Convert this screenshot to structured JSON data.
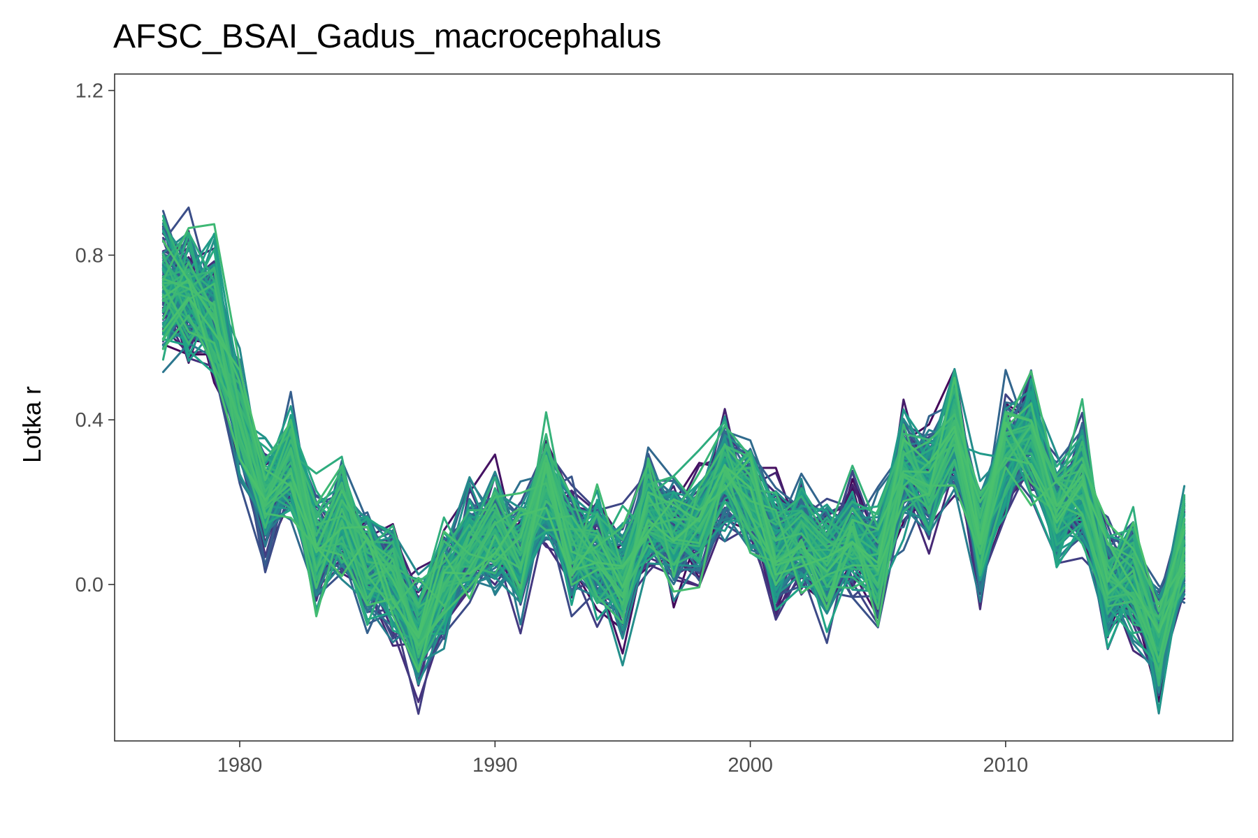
{
  "chart_data": {
    "type": "line",
    "title": "AFSC_BSAI_Gadus_macrocephalus",
    "xlabel": "",
    "ylabel": "Lotka r",
    "xlim": [
      1975.1,
      2018.9
    ],
    "ylim": [
      -0.38,
      1.24
    ],
    "x_ticks": [
      1980,
      1990,
      2000,
      2010
    ],
    "x_tick_labels": [
      "1980",
      "1990",
      "2000",
      "2010"
    ],
    "y_ticks": [
      0.0,
      0.4,
      0.8,
      1.2
    ],
    "y_tick_labels": [
      "0.0",
      "0.4",
      "0.8",
      "1.2"
    ],
    "grid": false,
    "legend": "none",
    "palette": [
      "#440154",
      "#46327e",
      "#365c8d",
      "#277f8e",
      "#1fa187",
      "#4ac16d"
    ],
    "x": [
      1977,
      1978,
      1979,
      1980,
      1981,
      1982,
      1983,
      1984,
      1985,
      1986,
      1987,
      1988,
      1989,
      1990,
      1991,
      1992,
      1993,
      1994,
      1995,
      1996,
      1997,
      1998,
      1999,
      2000,
      2001,
      2002,
      2003,
      2004,
      2005,
      2006,
      2007,
      2008,
      2009,
      2010,
      2011,
      2012,
      2013,
      2014,
      2015,
      2016,
      2017
    ],
    "central_trajectory": [
      0.72,
      0.7,
      0.66,
      0.4,
      0.2,
      0.3,
      0.08,
      0.15,
      0.05,
      0.02,
      -0.12,
      0.0,
      0.1,
      0.12,
      0.08,
      0.24,
      0.1,
      0.08,
      0.02,
      0.18,
      0.12,
      0.14,
      0.28,
      0.22,
      0.08,
      0.12,
      0.06,
      0.12,
      0.05,
      0.28,
      0.25,
      0.38,
      0.1,
      0.32,
      0.36,
      0.18,
      0.25,
      0.0,
      0.03,
      -0.15,
      0.1
    ],
    "ensemble_series_count": 160,
    "ensemble_spread": 0.12
  }
}
